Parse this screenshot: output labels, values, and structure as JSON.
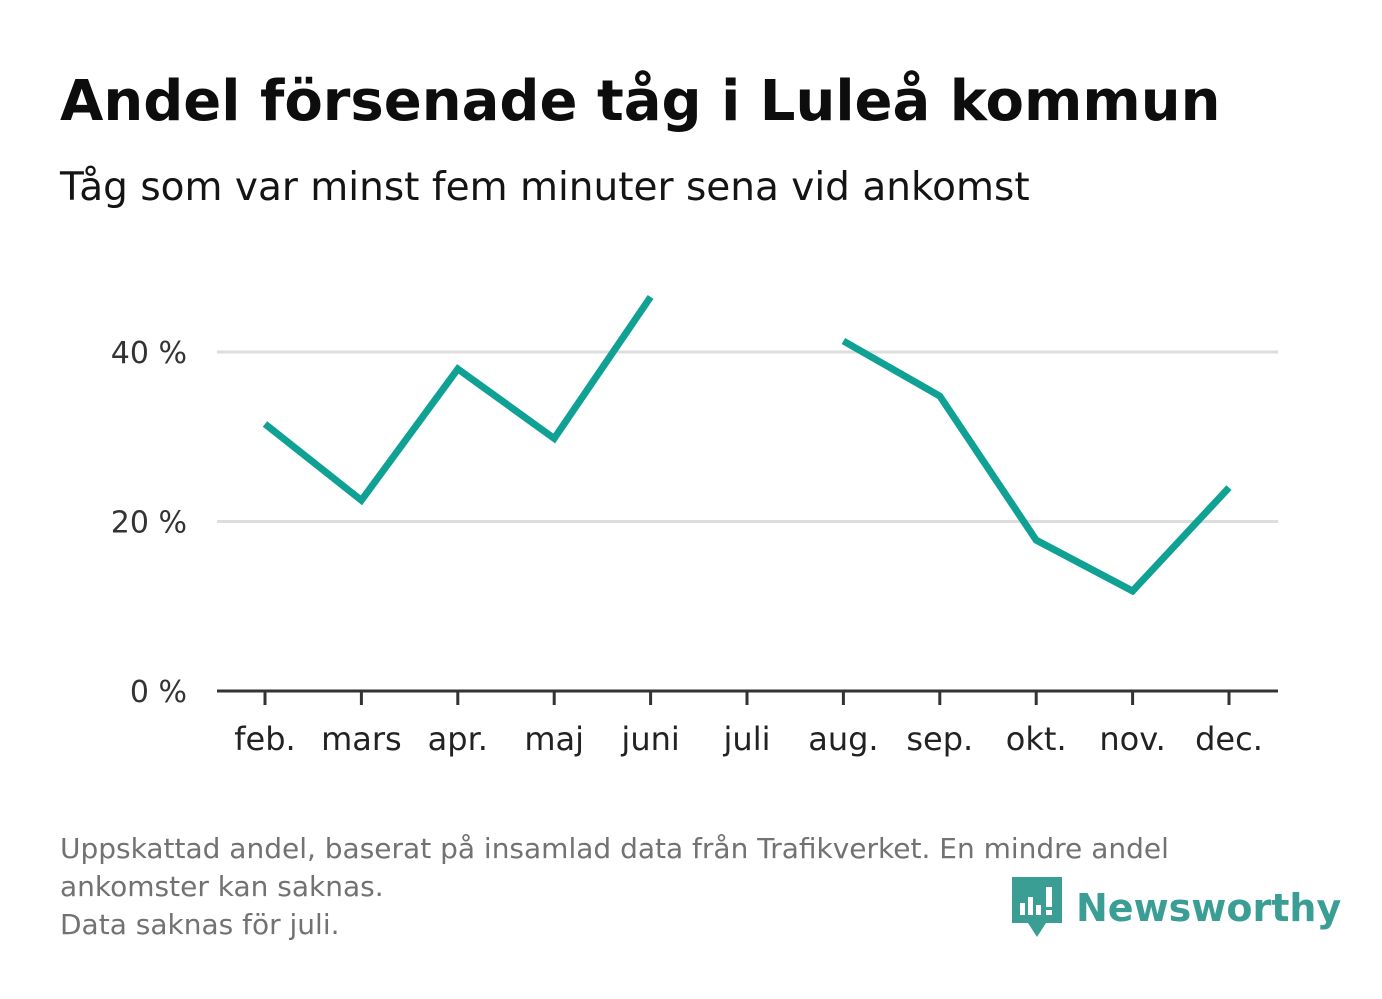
{
  "title": "Andel försenade tåg i Luleå kommun",
  "subtitle": "Tåg som var minst fem minuter sena vid ankomst",
  "footnote": {
    "line1": "Uppskattad andel, baserat på insamlad data från Trafikverket. En mindre andel",
    "line2": "ankomster kan saknas.",
    "line3": "Data saknas för juli."
  },
  "brand": {
    "name": "Newsworthy",
    "color": "#3a9e95",
    "icon": "newsworthy-logo-icon"
  },
  "chart_data": {
    "type": "line",
    "categories": [
      "feb.",
      "mars",
      "apr.",
      "maj",
      "juni",
      "juli",
      "aug.",
      "sep.",
      "okt.",
      "nov.",
      "dec."
    ],
    "series": [
      {
        "values": [
          31.5,
          22.5,
          38,
          29.8,
          46.5,
          null,
          41.3,
          34.8,
          17.8,
          11.8,
          24
        ]
      }
    ],
    "ylim": [
      0,
      50
    ],
    "yticks": [
      0,
      20,
      40
    ],
    "ytick_labels": [
      "0 %",
      "20 %",
      "40 %"
    ],
    "grid": true,
    "line_color": "#10a195",
    "grid_color": "#dddddd",
    "axis_color": "#333333"
  }
}
